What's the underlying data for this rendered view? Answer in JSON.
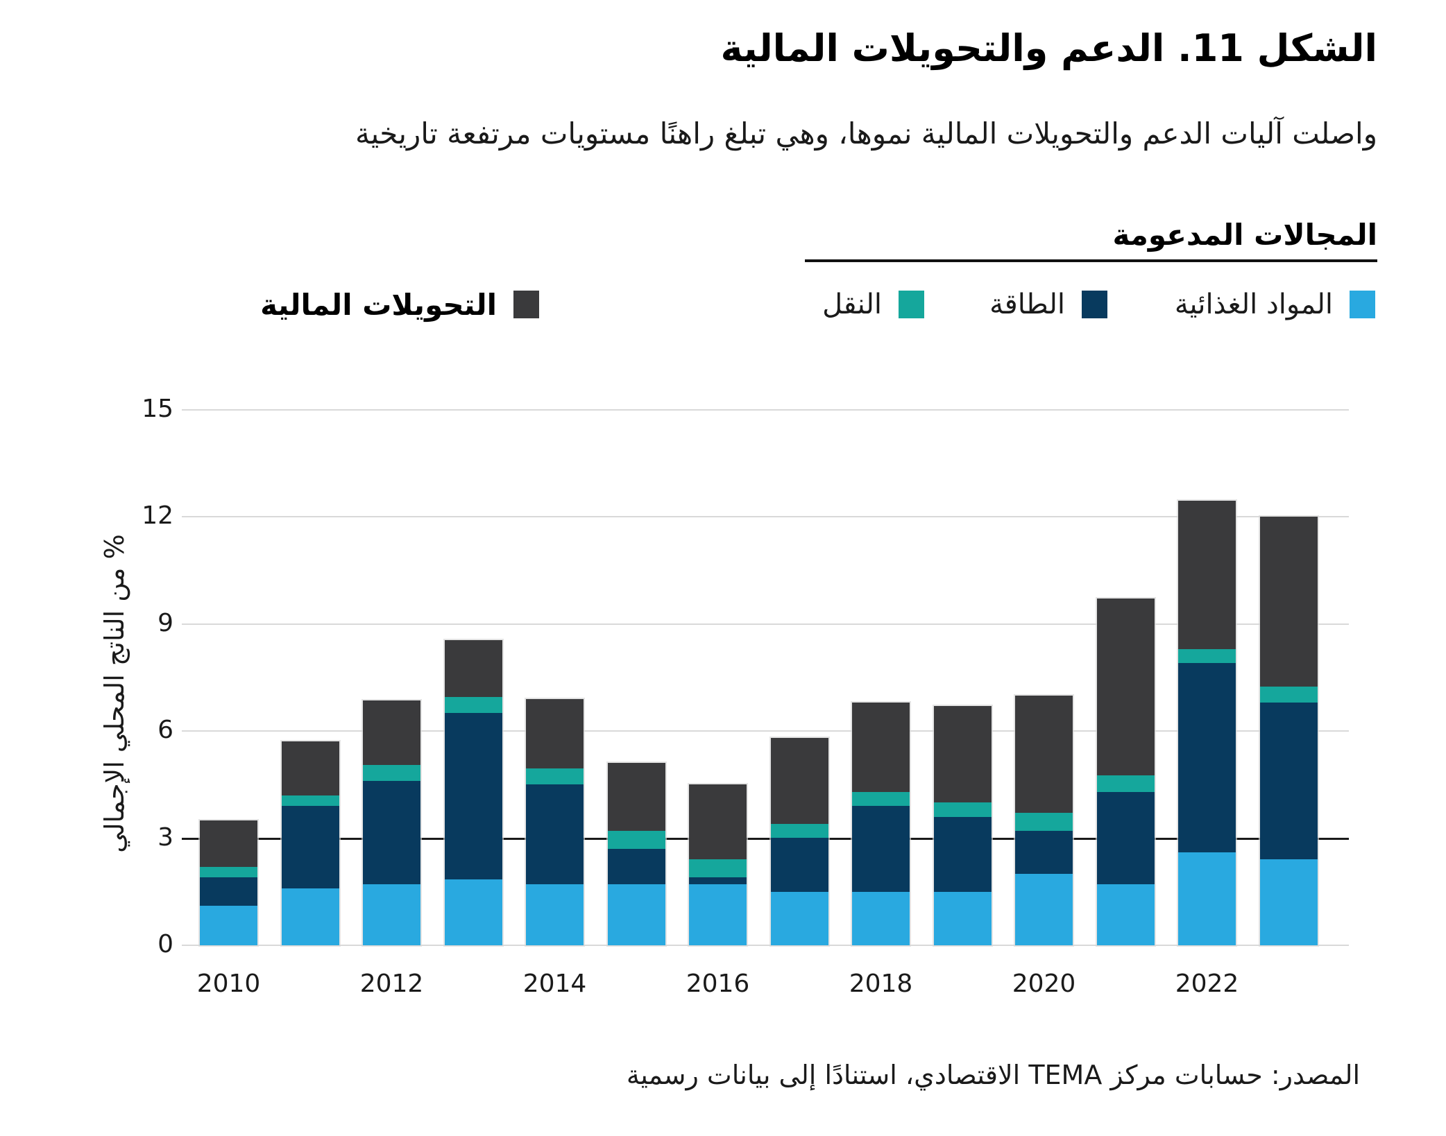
{
  "figure": {
    "title": "الشكل 11. الدعم والتحويلات المالية",
    "subtitle": "واصلت آليات الدعم والتحويلات المالية نموها، وهي تبلغ راهنًا مستويات مرتفعة تاريخية",
    "source": "المصدر: حسابات مركز TEMA الاقتصادي، استنادًا إلى بيانات رسمية"
  },
  "legend": {
    "group_title": "المجالات المدعومة",
    "items": [
      {
        "key": "food",
        "label": "المواد الغذائية",
        "color": "#29A9E0"
      },
      {
        "key": "energy",
        "label": "الطاقة",
        "color": "#083A5E"
      },
      {
        "key": "transport",
        "label": "النقل",
        "color": "#15A79C"
      }
    ],
    "standalone": {
      "key": "transfers",
      "label": "التحويلات المالية",
      "color": "#3A3A3C"
    }
  },
  "chart_data": {
    "type": "bar",
    "stacked": true,
    "title": "الشكل 11. الدعم والتحويلات المالية",
    "ylabel": "% من الناتج المحلي الإجمالي",
    "xlabel": "",
    "categories": [
      2010,
      2011,
      2012,
      2013,
      2014,
      2015,
      2016,
      2017,
      2018,
      2019,
      2020,
      2021,
      2022,
      2023
    ],
    "x_tick_labels": [
      "2010",
      "2012",
      "2014",
      "2016",
      "2018",
      "2020",
      "2022"
    ],
    "y_ticks": [
      0,
      3,
      6,
      9,
      12,
      15
    ],
    "ylim": [
      0,
      15
    ],
    "grid": true,
    "highlight_gridline": 3,
    "legend_position": "top-right",
    "series": [
      {
        "name": "المواد الغذائية",
        "color": "#29A9E0",
        "values": [
          1.1,
          1.6,
          1.7,
          1.85,
          1.7,
          1.7,
          1.7,
          1.5,
          1.5,
          1.5,
          2.0,
          1.7,
          2.6,
          2.4
        ]
      },
      {
        "name": "الطاقة",
        "color": "#083A5E",
        "values": [
          0.8,
          2.3,
          2.9,
          4.65,
          2.8,
          1.0,
          0.2,
          1.5,
          2.4,
          2.1,
          1.2,
          2.6,
          5.3,
          4.4
        ]
      },
      {
        "name": "النقل",
        "color": "#15A79C",
        "values": [
          0.3,
          0.3,
          0.45,
          0.45,
          0.45,
          0.5,
          0.5,
          0.4,
          0.4,
          0.4,
          0.5,
          0.45,
          0.4,
          0.45
        ]
      },
      {
        "name": "التحويلات المالية",
        "color": "#3A3A3C",
        "values": [
          1.3,
          1.5,
          1.8,
          1.6,
          1.95,
          1.9,
          2.1,
          2.4,
          2.5,
          2.7,
          3.3,
          4.95,
          4.15,
          4.75
        ]
      }
    ],
    "totals": [
      3.5,
      5.7,
      6.85,
      8.55,
      6.9,
      5.1,
      4.5,
      5.8,
      6.8,
      6.7,
      7.0,
      9.7,
      12.45,
      12.0
    ]
  }
}
